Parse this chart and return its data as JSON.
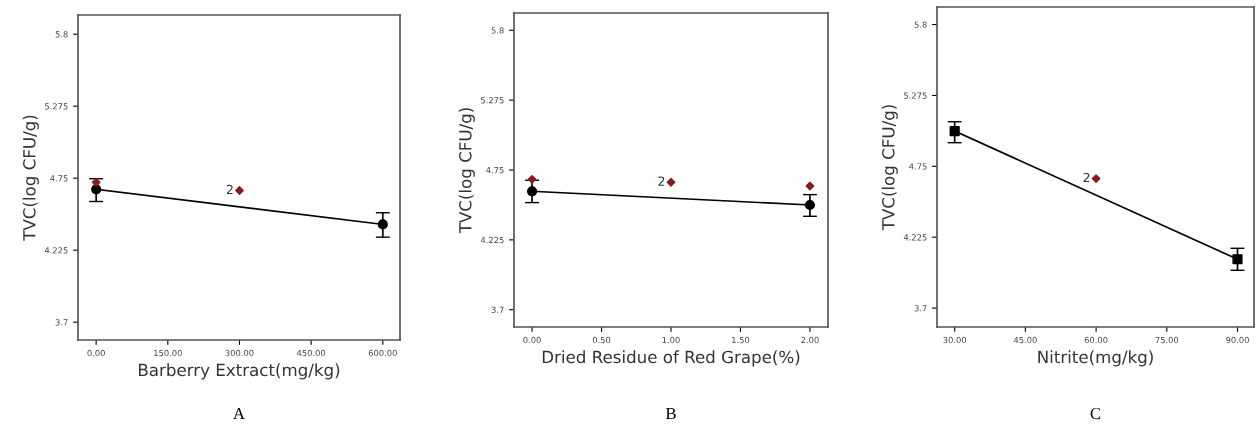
{
  "chart_data": [
    {
      "type": "line",
      "xlabel": "Barberry Extract(mg/kg)",
      "ylabel": "TVC(log CFU/g)",
      "annotations": [
        {
          "text": "2",
          "x": 300,
          "y": 4.66
        },
        "A"
      ],
      "xlim": [
        -38,
        636
      ],
      "ylim": [
        3.57,
        5.94
      ],
      "xticks": [
        {
          "value": 0,
          "label": "0.00"
        },
        {
          "value": 150,
          "label": "150.00"
        },
        {
          "value": 300,
          "label": "300.00"
        },
        {
          "value": 450,
          "label": "450.00"
        },
        {
          "value": 600,
          "label": "600.00"
        }
      ],
      "yticks": [
        3.7,
        4.225,
        4.75,
        5.275,
        5.8
      ],
      "grid": false,
      "legend": false,
      "series": [
        {
          "marker": "circle",
          "color": "#000000",
          "x": [
            0,
            600
          ],
          "values": [
            4.669,
            4.413
          ],
          "errors": [
            [
              4.58,
              4.746
            ],
            [
              4.32,
              4.498
            ]
          ]
        },
        {
          "type": "scatter",
          "marker": "diamond",
          "color": "#8b1a1a",
          "x": [
            0,
            300
          ],
          "values": [
            4.72,
            4.66
          ]
        }
      ]
    },
    {
      "type": "line",
      "xlabel": "Dried Residue of Red Grape(%)",
      "ylabel": "TVC(log CFU/g)",
      "annotations": [
        {
          "text": "2",
          "x": 1,
          "y": 4.658
        },
        "B"
      ],
      "xlim": [
        -0.13,
        2.13
      ],
      "ylim": [
        3.57,
        5.93
      ],
      "xticks": [
        {
          "value": 0,
          "label": "0.00"
        },
        {
          "value": 0.5,
          "label": "0.50"
        },
        {
          "value": 1,
          "label": "1.00"
        },
        {
          "value": 1.5,
          "label": "1.50"
        },
        {
          "value": 2,
          "label": "2.00"
        }
      ],
      "yticks": [
        3.7,
        4.225,
        4.75,
        5.275,
        5.8
      ],
      "grid": false,
      "legend": false,
      "series": [
        {
          "marker": "circle",
          "color": "#000000",
          "x": [
            0,
            2
          ],
          "values": [
            4.59,
            4.487
          ],
          "errors": [
            [
              4.505,
              4.673
            ],
            [
              4.402,
              4.565
            ]
          ]
        },
        {
          "type": "scatter",
          "marker": "diamond",
          "color": "#8b1a1a",
          "x": [
            0,
            1,
            2
          ],
          "values": [
            4.68,
            4.658,
            4.63
          ]
        }
      ]
    },
    {
      "type": "line",
      "xlabel": "Nitrite(mg/kg)",
      "ylabel": "TVC(log CFU/g)",
      "annotations": [
        {
          "text": "2",
          "x": 60,
          "y": 4.659
        },
        "C"
      ],
      "xlim": [
        26.25,
        93.5
      ],
      "ylim": [
        3.56,
        5.93
      ],
      "xticks": [
        {
          "value": 30,
          "label": "30.00"
        },
        {
          "value": 45,
          "label": "45.00"
        },
        {
          "value": 60,
          "label": "60.00"
        },
        {
          "value": 75,
          "label": "75.00"
        },
        {
          "value": 90,
          "label": "90.00"
        }
      ],
      "yticks": [
        3.7,
        4.225,
        4.75,
        5.275,
        5.8
      ],
      "grid": false,
      "legend": false,
      "series": [
        {
          "marker": "square",
          "color": "#000000",
          "x": [
            30,
            90
          ],
          "values": [
            5.011,
            4.062
          ],
          "errors": [
            [
              4.925,
              5.08
            ],
            [
              3.98,
              4.143
            ]
          ]
        },
        {
          "type": "scatter",
          "marker": "diamond",
          "color": "#8b1a1a",
          "x": [
            60
          ],
          "values": [
            4.659
          ]
        }
      ]
    }
  ]
}
